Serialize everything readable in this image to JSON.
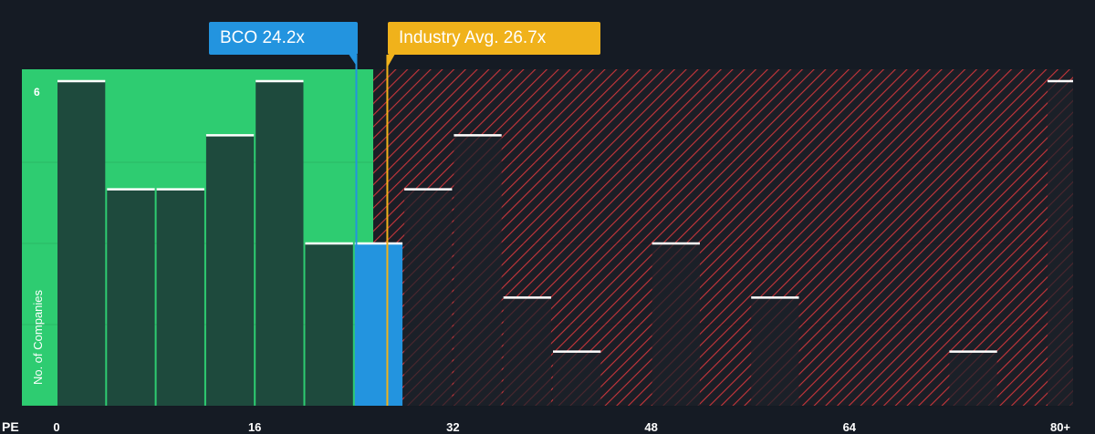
{
  "chart_data": {
    "type": "bar",
    "xlabel": "PE",
    "ylabel": "No. of Companies",
    "bin_width": 4,
    "bins": [
      {
        "start": 0,
        "count": 6
      },
      {
        "start": 4,
        "count": 4
      },
      {
        "start": 8,
        "count": 4
      },
      {
        "start": 12,
        "count": 5
      },
      {
        "start": 16,
        "count": 6
      },
      {
        "start": 20,
        "count": 3
      },
      {
        "start": 24,
        "count": 3
      },
      {
        "start": 28,
        "count": 4
      },
      {
        "start": 32,
        "count": 5
      },
      {
        "start": 36,
        "count": 2
      },
      {
        "start": 40,
        "count": 1
      },
      {
        "start": 44,
        "count": 0
      },
      {
        "start": 48,
        "count": 3
      },
      {
        "start": 52,
        "count": 0
      },
      {
        "start": 56,
        "count": 2
      },
      {
        "start": 60,
        "count": 0
      },
      {
        "start": 64,
        "count": 0
      },
      {
        "start": 68,
        "count": 0
      },
      {
        "start": 72,
        "count": 1
      },
      {
        "start": 76,
        "count": 0
      },
      {
        "start": 80,
        "count": 6
      }
    ],
    "x_ticks": [
      {
        "value": 0,
        "label": "0"
      },
      {
        "value": 16,
        "label": "16"
      },
      {
        "value": 32,
        "label": "32"
      },
      {
        "value": 48,
        "label": "48"
      },
      {
        "value": 64,
        "label": "64"
      },
      {
        "value": 80,
        "label": "80+"
      }
    ],
    "y_ticks": [
      {
        "value": 6,
        "label": "6"
      }
    ],
    "xlim": [
      0,
      82
    ],
    "ylim": [
      0,
      6
    ],
    "grid": true,
    "highlight": {
      "name": "BCO",
      "value": 24.2,
      "label": "BCO 24.2x",
      "bin_start": 24
    },
    "industry_avg": {
      "value": 26.7,
      "label": "Industry Avg. 26.7x"
    },
    "colors": {
      "background": "#151b24",
      "below_zone": "#2ecc71",
      "above_zone_stripe": "#c9363b",
      "bar_dark": "#1e4a3d",
      "bar_dark_above": "#1c2129",
      "highlight_bar": "#2394df",
      "avg_line": "#f0b21b",
      "bar_cap": "#ffffff"
    }
  }
}
